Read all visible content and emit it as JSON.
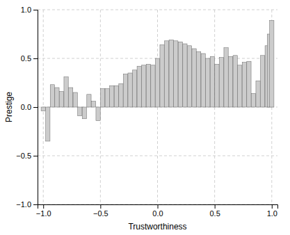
{
  "chart_data": {
    "type": "bar",
    "xlabel": "Trustworthiness",
    "ylabel": "Prestige",
    "x": [
      -1.0,
      -0.96,
      -0.92,
      -0.88,
      -0.84,
      -0.8,
      -0.76,
      -0.72,
      -0.68,
      -0.64,
      -0.6,
      -0.56,
      -0.52,
      -0.48,
      -0.44,
      -0.4,
      -0.36,
      -0.32,
      -0.28,
      -0.24,
      -0.2,
      -0.16,
      -0.12,
      -0.08,
      -0.04,
      0.0,
      0.04,
      0.08,
      0.12,
      0.16,
      0.2,
      0.24,
      0.28,
      0.32,
      0.36,
      0.4,
      0.44,
      0.48,
      0.52,
      0.56,
      0.6,
      0.64,
      0.68,
      0.72,
      0.76,
      0.8,
      0.84,
      0.88,
      0.92,
      0.96,
      0.98,
      1.0
    ],
    "values": [
      -0.04,
      -0.35,
      0.23,
      0.2,
      0.16,
      0.31,
      0.2,
      0.15,
      -0.09,
      -0.12,
      0.13,
      0.06,
      -0.14,
      0.19,
      0.19,
      0.22,
      0.22,
      0.24,
      0.34,
      0.35,
      0.38,
      0.42,
      0.43,
      0.44,
      0.43,
      0.5,
      0.64,
      0.68,
      0.69,
      0.68,
      0.67,
      0.65,
      0.63,
      0.6,
      0.57,
      0.55,
      0.5,
      0.52,
      0.44,
      0.51,
      0.61,
      0.52,
      0.53,
      0.43,
      0.46,
      0.47,
      0.14,
      0.27,
      0.53,
      0.63,
      0.75,
      0.89
    ],
    "color": "#cccccc",
    "xlim": [
      -1.05,
      1.05
    ],
    "ylim": [
      -1.0,
      1.0
    ],
    "xticks": [
      {
        "value": -1.0,
        "label": "−1.0"
      },
      {
        "value": -0.5,
        "label": "−0.5"
      },
      {
        "value": 0.0,
        "label": "0.0"
      },
      0.5,
      {
        "value": 1.0,
        "label": "1.0"
      }
    ],
    "yticks": [
      {
        "value": -1.0,
        "label": "−1.0"
      },
      {
        "value": -0.5,
        "label": "−0.5"
      },
      {
        "value": 0.0,
        "label": "0.0"
      },
      0.5,
      {
        "value": 1.0,
        "label": "1.0"
      }
    ],
    "grid": true
  }
}
